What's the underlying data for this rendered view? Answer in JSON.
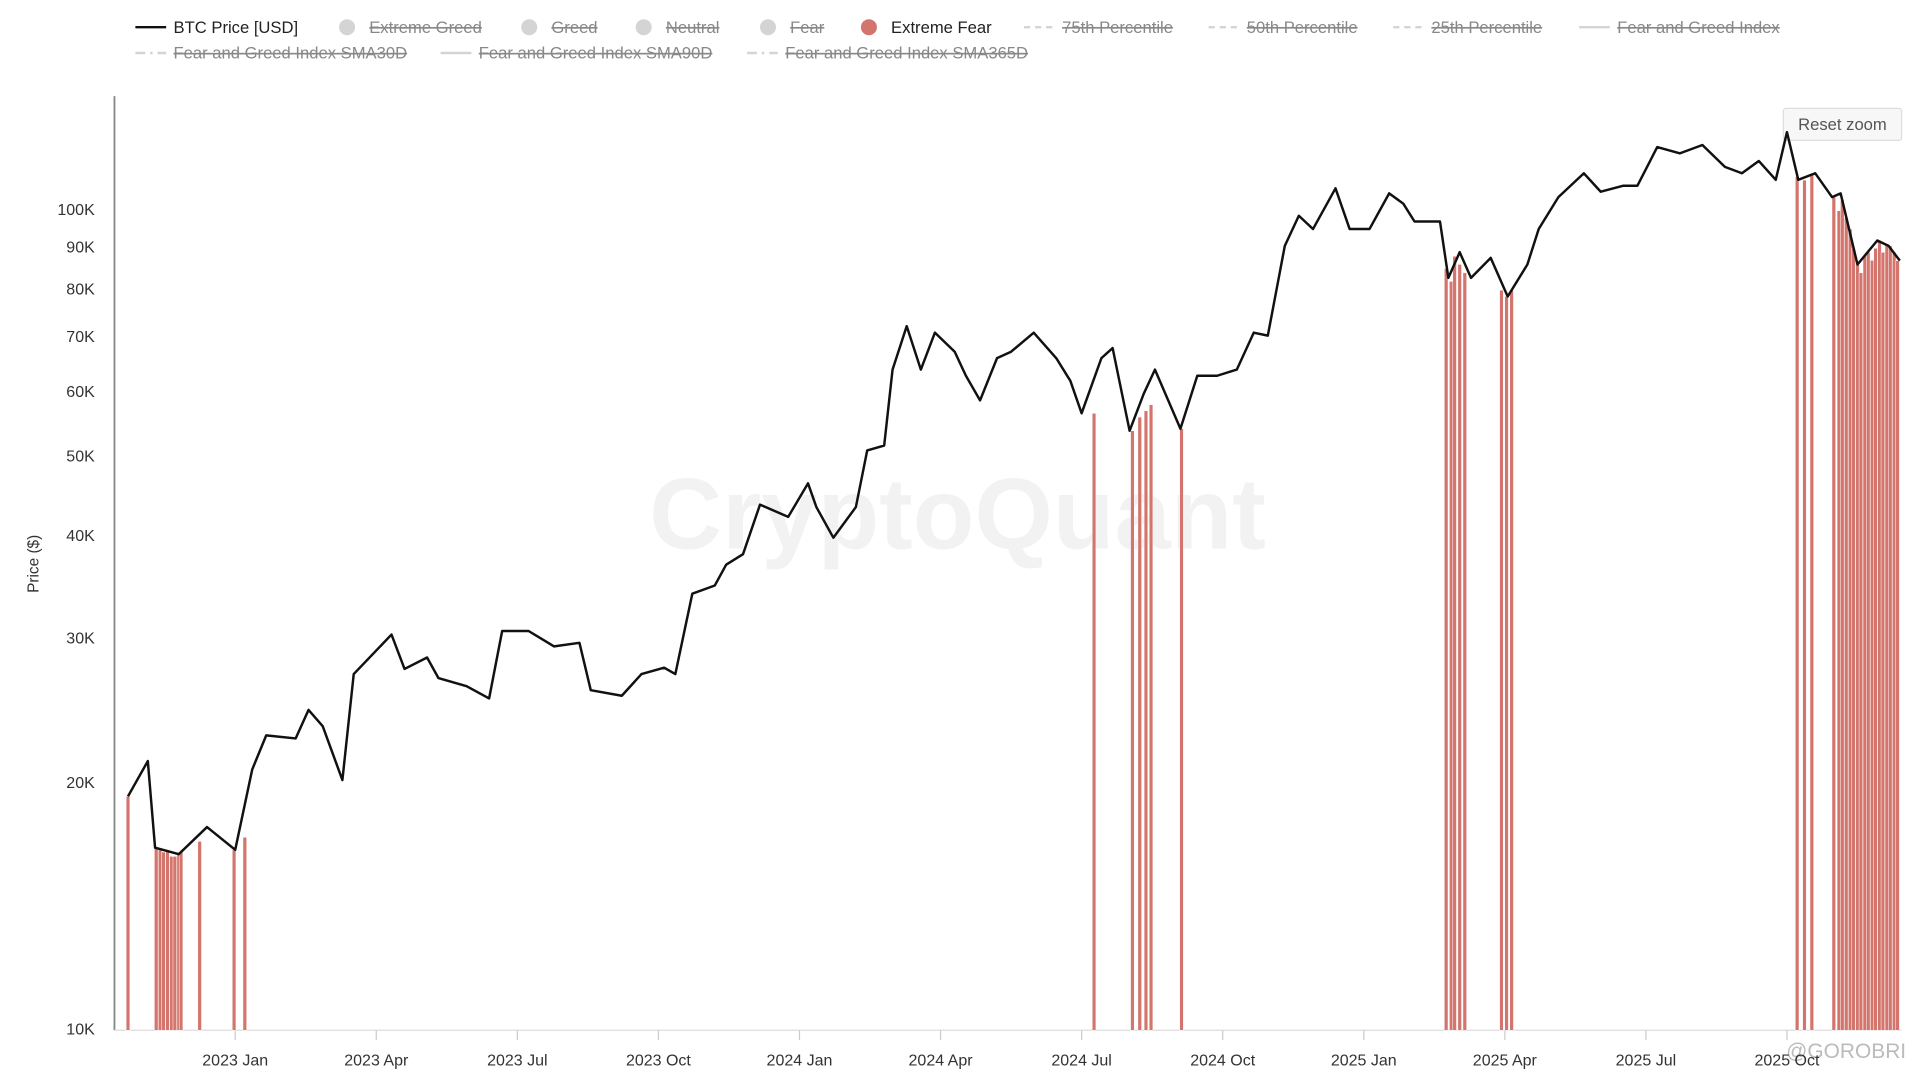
{
  "chart_data": {
    "type": "line",
    "ylabel": "Price ($)",
    "button": "Reset zoom",
    "watermark": "CryptoQuant",
    "credit": "@GOROBRI",
    "log_y": true,
    "xlim": [
      2022.786,
      2025.953
    ],
    "xticks": [
      {
        "value": 2023.0,
        "label": "2023 Jan"
      },
      {
        "value": 2023.25,
        "label": "2023 Apr"
      },
      {
        "value": 2023.5,
        "label": "2023 Jul"
      },
      {
        "value": 2023.75,
        "label": "2023 Oct"
      },
      {
        "value": 2024.0,
        "label": "2024 Jan"
      },
      {
        "value": 2024.25,
        "label": "2024 Apr"
      },
      {
        "value": 2024.5,
        "label": "2024 Jul"
      },
      {
        "value": 2024.75,
        "label": "2024 Oct"
      },
      {
        "value": 2025.0,
        "label": "2025 Jan"
      },
      {
        "value": 2025.25,
        "label": "2025 Apr"
      },
      {
        "value": 2025.5,
        "label": "2025 Jul"
      },
      {
        "value": 2025.75,
        "label": "2025 Oct"
      }
    ],
    "ylim": [
      10000,
      138000
    ],
    "yticks": [
      {
        "value": 10000,
        "label": "10K"
      },
      {
        "value": 20000,
        "label": "20K"
      },
      {
        "value": 30000,
        "label": "30K"
      },
      {
        "value": 40000,
        "label": "40K"
      },
      {
        "value": 50000,
        "label": "50K"
      },
      {
        "value": 60000,
        "label": "60K"
      },
      {
        "value": 70000,
        "label": "70K"
      },
      {
        "value": 80000,
        "label": "80K"
      },
      {
        "value": 90000,
        "label": "90K"
      },
      {
        "value": 100000,
        "label": "100K"
      }
    ],
    "series": [
      {
        "name": "BTC Price [USD]",
        "type": "line",
        "marker": "line",
        "color": "#111111",
        "visible": true,
        "x": [
          2022.81,
          2022.845,
          2022.858,
          2022.9,
          2022.95,
          2023.0,
          2023.03,
          2023.055,
          2023.107,
          2023.13,
          2023.155,
          2023.19,
          2023.21,
          2023.277,
          2023.3,
          2023.34,
          2023.36,
          2023.41,
          2023.45,
          2023.473,
          2023.52,
          2023.565,
          2023.61,
          2023.63,
          2023.685,
          2023.72,
          2023.76,
          2023.78,
          2023.81,
          2023.85,
          2023.87,
          2023.9,
          2023.93,
          2023.98,
          2024.015,
          2024.03,
          2024.06,
          2024.1,
          2024.12,
          2024.15,
          2024.165,
          2024.19,
          2024.215,
          2024.24,
          2024.275,
          2024.295,
          2024.32,
          2024.35,
          2024.375,
          2024.415,
          2024.455,
          2024.48,
          2024.5,
          2024.535,
          2024.555,
          2024.585,
          2024.61,
          2024.63,
          2024.675,
          2024.705,
          2024.74,
          2024.775,
          2024.805,
          2024.83,
          2024.86,
          2024.885,
          2024.91,
          2024.95,
          2024.975,
          2025.01,
          2025.045,
          2025.07,
          2025.09,
          2025.135,
          2025.15,
          2025.17,
          2025.19,
          2025.225,
          2025.255,
          2025.29,
          2025.31,
          2025.345,
          2025.39,
          2025.42,
          2025.46,
          2025.485,
          2025.52,
          2025.56,
          2025.6,
          2025.64,
          2025.67,
          2025.7,
          2025.73,
          2025.75,
          2025.77,
          2025.8,
          2025.83,
          2025.845,
          2025.875,
          2025.91,
          2025.93,
          2025.95
        ],
        "values": [
          19300,
          21300,
          16700,
          16400,
          17700,
          16600,
          20800,
          22900,
          22700,
          24600,
          23500,
          20200,
          27200,
          30400,
          27600,
          28500,
          26900,
          26300,
          25400,
          30700,
          30700,
          29400,
          29700,
          26000,
          25600,
          27200,
          27700,
          27200,
          34100,
          34900,
          37000,
          38100,
          43800,
          42300,
          46500,
          43500,
          39900,
          43500,
          51000,
          51700,
          64000,
          72300,
          64000,
          71000,
          67300,
          62900,
          58700,
          66100,
          67300,
          71000,
          66100,
          62000,
          56600,
          66100,
          68000,
          53900,
          59800,
          64000,
          54200,
          62900,
          62900,
          64000,
          71000,
          70400,
          90600,
          98600,
          95000,
          106500,
          95000,
          95000,
          105000,
          102000,
          97000,
          97000,
          82800,
          89000,
          82800,
          87600,
          78600,
          86000,
          95000,
          103900,
          111100,
          105500,
          107300,
          107300,
          119600,
          117500,
          120300,
          113100,
          111100,
          115000,
          109100,
          124700,
          109100,
          111100,
          103900,
          105000,
          86000,
          92000,
          90600,
          86900
        ]
      },
      {
        "name": "Extreme Greed",
        "marker": "circle",
        "color": "#d4d4d4",
        "visible": false
      },
      {
        "name": "Greed",
        "marker": "circle",
        "color": "#d4d4d4",
        "visible": false
      },
      {
        "name": "Neutral",
        "marker": "circle",
        "color": "#d4d4d4",
        "visible": false
      },
      {
        "name": "Fear",
        "marker": "circle",
        "color": "#d4d4d4",
        "visible": false
      },
      {
        "name": "Extreme Fear",
        "type": "bar",
        "marker": "circle",
        "color": "#d4756d",
        "visible": true,
        "x": [
          2022.81,
          2022.86,
          2022.867,
          2022.873,
          2022.88,
          2022.887,
          2022.893,
          2022.9,
          2022.904,
          2022.937,
          2022.998,
          2023.017,
          2024.522,
          2024.59,
          2024.603,
          2024.614,
          2024.623,
          2024.677,
          2025.146,
          2025.155,
          2025.161,
          2025.17,
          2025.179,
          2025.244,
          2025.253,
          2025.262,
          2025.768,
          2025.781,
          2025.794,
          2025.833,
          2025.842,
          2025.848,
          2025.855,
          2025.862,
          2025.868,
          2025.875,
          2025.881,
          2025.888,
          2025.894,
          2025.901,
          2025.907,
          2025.914,
          2025.92,
          2025.927,
          2025.933,
          2025.94,
          2025.946
        ],
        "values": [
          19300,
          16700,
          16600,
          16500,
          16600,
          16300,
          16300,
          16400,
          16500,
          17000,
          16600,
          17200,
          56600,
          53900,
          56000,
          57000,
          58000,
          54200,
          85000,
          82000,
          88000,
          86000,
          84000,
          80000,
          78600,
          80000,
          110000,
          109000,
          111000,
          103900,
          100000,
          103000,
          98000,
          95000,
          90000,
          86000,
          84000,
          88000,
          89000,
          87000,
          90000,
          92000,
          89000,
          91000,
          90600,
          89000,
          86900
        ]
      },
      {
        "name": "75th Percentile",
        "marker": "dash",
        "color": "#d4d4d4",
        "visible": false
      },
      {
        "name": "50th Percentile",
        "marker": "dash",
        "color": "#d4d4d4",
        "visible": false
      },
      {
        "name": "25th Percentile",
        "marker": "dash",
        "color": "#d4d4d4",
        "visible": false
      },
      {
        "name": "Fear and Greed Index",
        "marker": "line",
        "color": "#d4d4d4",
        "visible": false
      },
      {
        "name": "Fear and Greed Index SMA30D",
        "marker": "dashdot",
        "color": "#d4d4d4",
        "visible": false
      },
      {
        "name": "Fear and Greed Index SMA90D",
        "marker": "line",
        "color": "#d4d4d4",
        "visible": false
      },
      {
        "name": "Fear and Greed Index SMA365D",
        "marker": "dashdot",
        "color": "#d4d4d4",
        "visible": false
      }
    ]
  }
}
